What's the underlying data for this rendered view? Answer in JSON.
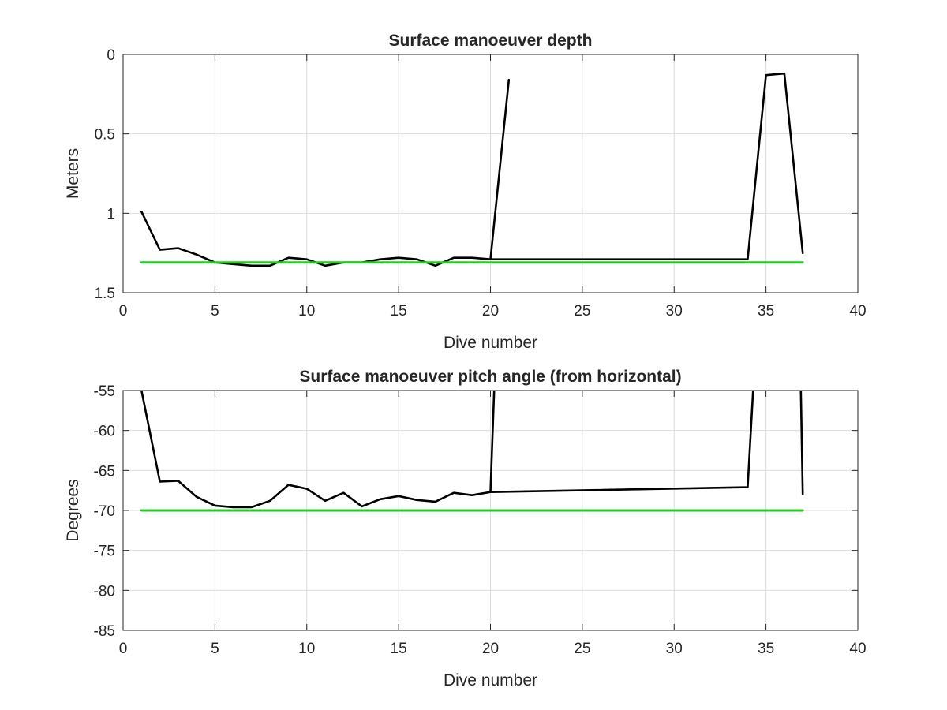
{
  "chart_data": [
    {
      "type": "line",
      "title": "Surface manoeuver depth",
      "xlabel": "Dive number",
      "ylabel": "Meters",
      "xlim": [
        0,
        40
      ],
      "ylim": [
        0,
        1.5
      ],
      "y_reversed": true,
      "grid": true,
      "xticks": [
        "0",
        "5",
        "10",
        "15",
        "20",
        "25",
        "30",
        "35",
        "40"
      ],
      "yticks": [
        "0",
        "0.5",
        "1",
        "1.5"
      ],
      "colors": {
        "data": "#000000",
        "target": "#22cc22"
      },
      "series": [
        {
          "x": [
            1,
            2,
            3,
            4,
            5,
            6,
            7,
            8,
            9,
            10,
            11,
            12,
            13,
            14,
            15,
            16,
            17,
            18,
            19,
            20,
            21
          ],
          "y": [
            0.99,
            1.23,
            1.22,
            1.26,
            1.31,
            1.32,
            1.33,
            1.33,
            1.28,
            1.29,
            1.33,
            1.31,
            1.31,
            1.29,
            1.28,
            1.29,
            1.33,
            1.28,
            1.28,
            1.29,
            0.16
          ]
        },
        {
          "x": [
            20,
            34,
            35,
            36,
            37
          ],
          "y": [
            1.29,
            1.29,
            0.13,
            0.12,
            1.25
          ]
        },
        {
          "x": [
            1,
            37
          ],
          "y": [
            1.31,
            1.31
          ],
          "color": "target"
        }
      ]
    },
    {
      "type": "line",
      "title": "Surface manoeuver pitch angle (from horizontal)",
      "xlabel": "Dive number",
      "ylabel": "Degrees",
      "xlim": [
        0,
        40
      ],
      "ylim": [
        -85,
        -55
      ],
      "grid": true,
      "xticks": [
        "0",
        "5",
        "10",
        "15",
        "20",
        "25",
        "30",
        "35",
        "40"
      ],
      "yticks": [
        "-55",
        "-60",
        "-65",
        "-70",
        "-75",
        "-80",
        "-85"
      ],
      "colors": {
        "data": "#000000",
        "target": "#22cc22"
      },
      "series": [
        {
          "x": [
            1,
            2,
            3,
            4,
            5,
            6,
            7,
            8,
            9,
            10,
            11,
            12,
            13,
            14,
            15,
            16,
            17,
            18,
            19,
            20,
            20.2
          ],
          "y": [
            -55,
            -66.4,
            -66.3,
            -68.3,
            -69.4,
            -69.6,
            -69.6,
            -68.8,
            -66.8,
            -67.3,
            -68.8,
            -67.8,
            -69.5,
            -68.6,
            -68.2,
            -68.7,
            -68.9,
            -67.8,
            -68.1,
            -67.7,
            -55
          ]
        },
        {
          "x": [
            20,
            34,
            34.3
          ],
          "y": [
            -67.7,
            -67.1,
            -55
          ]
        },
        {
          "x": [
            36.9,
            37
          ],
          "y": [
            -55,
            -68.0
          ]
        },
        {
          "x": [
            1,
            37
          ],
          "y": [
            -70,
            -70
          ],
          "color": "target"
        }
      ]
    }
  ]
}
